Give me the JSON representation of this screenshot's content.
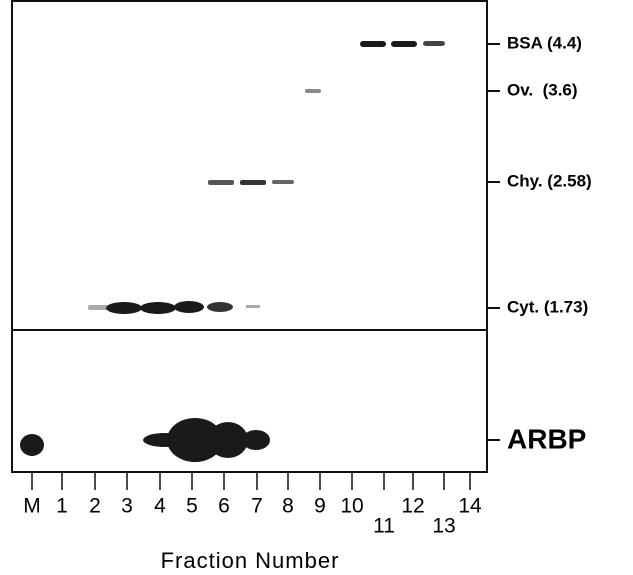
{
  "markers": [
    {
      "label": "BSA (4.4)"
    },
    {
      "label": "Ov.  (3.6)"
    },
    {
      "label": "Chy. (2.58)"
    },
    {
      "label": "Cyt. (1.73)"
    }
  ],
  "blot_label": "ARBP",
  "lanes": [
    "M",
    "1",
    "2",
    "3",
    "4",
    "5",
    "6",
    "7",
    "8",
    "9",
    "10",
    "11",
    "12",
    "13",
    "14"
  ],
  "x_label": "Fraction Number"
}
